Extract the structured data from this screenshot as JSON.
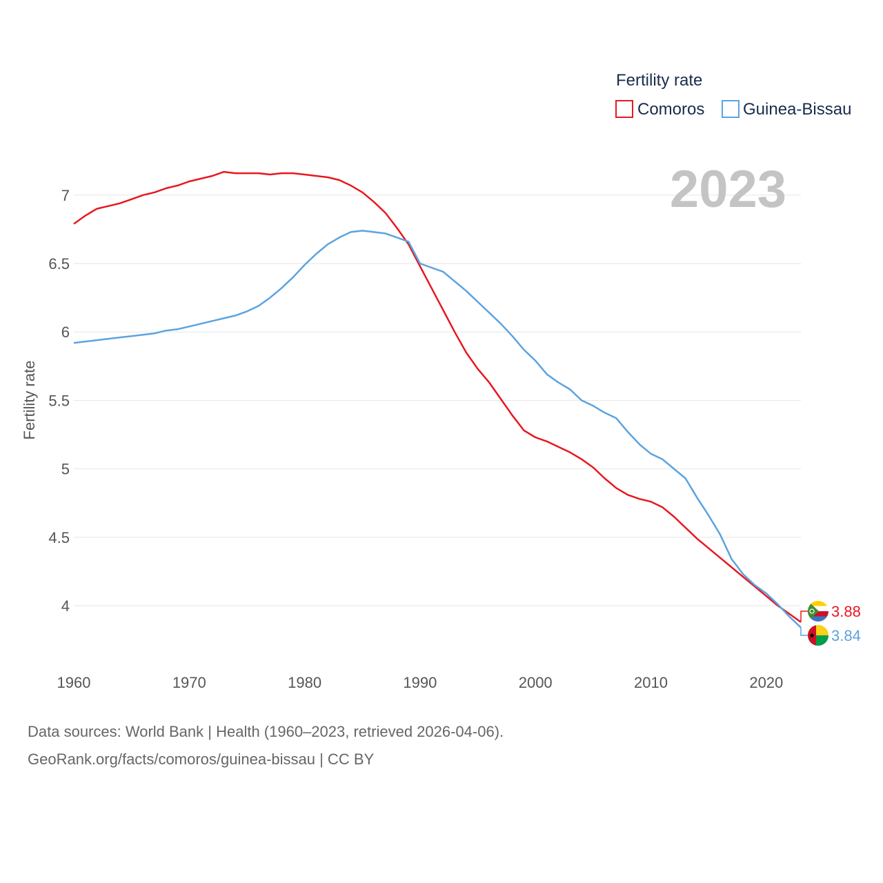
{
  "chart_data": {
    "type": "line",
    "ylabel": "Fertility rate",
    "xlabel": "",
    "xlim": [
      1960,
      2023
    ],
    "ylim": [
      3.65,
      7.3
    ],
    "yticks": [
      4,
      4.5,
      5,
      5.5,
      6,
      6.5,
      7
    ],
    "ytick_labels": [
      "4",
      "4.5",
      "5",
      "5.5",
      "6",
      "6.5",
      "7"
    ],
    "xticks": [
      1960,
      1970,
      1980,
      1990,
      2000,
      2010,
      2020
    ],
    "xtick_labels": [
      "1960",
      "1970",
      "1980",
      "1990",
      "2000",
      "2010",
      "2020"
    ],
    "grid": true,
    "current_year": "2023",
    "legend": {
      "title": "Fertility rate",
      "position": "top-right"
    },
    "series": [
      {
        "name": "Comoros",
        "color": "#e8171f",
        "end_label": "3.88",
        "flag_icon": "comoros-flag-icon",
        "x": [
          1960,
          1961,
          1962,
          1963,
          1964,
          1965,
          1966,
          1967,
          1968,
          1969,
          1970,
          1971,
          1972,
          1973,
          1974,
          1975,
          1976,
          1977,
          1978,
          1979,
          1980,
          1981,
          1982,
          1983,
          1984,
          1985,
          1986,
          1987,
          1988,
          1989,
          1990,
          1991,
          1992,
          1993,
          1994,
          1995,
          1996,
          1997,
          1998,
          1999,
          2000,
          2001,
          2002,
          2003,
          2004,
          2005,
          2006,
          2007,
          2008,
          2009,
          2010,
          2011,
          2012,
          2013,
          2014,
          2015,
          2016,
          2017,
          2018,
          2019,
          2020,
          2021,
          2022,
          2023
        ],
        "values": [
          6.79,
          6.85,
          6.9,
          6.92,
          6.94,
          6.97,
          7.0,
          7.02,
          7.05,
          7.07,
          7.1,
          7.12,
          7.14,
          7.17,
          7.16,
          7.16,
          7.16,
          7.15,
          7.16,
          7.16,
          7.15,
          7.14,
          7.13,
          7.11,
          7.07,
          7.02,
          6.95,
          6.87,
          6.76,
          6.64,
          6.48,
          6.32,
          6.16,
          6.0,
          5.85,
          5.73,
          5.63,
          5.51,
          5.39,
          5.28,
          5.23,
          5.2,
          5.16,
          5.12,
          5.07,
          5.01,
          4.93,
          4.86,
          4.81,
          4.78,
          4.76,
          4.72,
          4.65,
          4.57,
          4.49,
          4.42,
          4.35,
          4.28,
          4.21,
          4.14,
          4.07,
          4.0,
          3.94,
          3.88
        ]
      },
      {
        "name": "Guinea-Bissau",
        "color": "#5ba3e0",
        "end_label": "3.84",
        "flag_icon": "guinea-bissau-flag-icon",
        "x": [
          1960,
          1961,
          1962,
          1963,
          1964,
          1965,
          1966,
          1967,
          1968,
          1969,
          1970,
          1971,
          1972,
          1973,
          1974,
          1975,
          1976,
          1977,
          1978,
          1979,
          1980,
          1981,
          1982,
          1983,
          1984,
          1985,
          1986,
          1987,
          1988,
          1989,
          1990,
          1991,
          1992,
          1993,
          1994,
          1995,
          1996,
          1997,
          1998,
          1999,
          2000,
          2001,
          2002,
          2003,
          2004,
          2005,
          2006,
          2007,
          2008,
          2009,
          2010,
          2011,
          2012,
          2013,
          2014,
          2015,
          2016,
          2017,
          2018,
          2019,
          2020,
          2021,
          2022,
          2023
        ],
        "values": [
          5.92,
          5.93,
          5.94,
          5.95,
          5.96,
          5.97,
          5.98,
          5.99,
          6.01,
          6.02,
          6.04,
          6.06,
          6.08,
          6.1,
          6.12,
          6.15,
          6.19,
          6.25,
          6.32,
          6.4,
          6.49,
          6.57,
          6.64,
          6.69,
          6.73,
          6.74,
          6.73,
          6.72,
          6.69,
          6.66,
          6.5,
          6.47,
          6.44,
          6.37,
          6.3,
          6.22,
          6.14,
          6.06,
          5.97,
          5.87,
          5.79,
          5.69,
          5.63,
          5.58,
          5.5,
          5.46,
          5.41,
          5.37,
          5.27,
          5.18,
          5.11,
          5.07,
          5.0,
          4.93,
          4.79,
          4.66,
          4.52,
          4.34,
          4.23,
          4.15,
          4.09,
          4.01,
          3.92,
          3.84
        ]
      }
    ]
  },
  "footer": {
    "line1": "Data sources: World Bank | Health (1960–2023, retrieved 2026-04-06).",
    "line2": "GeoRank.org/facts/comoros/guinea-bissau | CC BY"
  }
}
